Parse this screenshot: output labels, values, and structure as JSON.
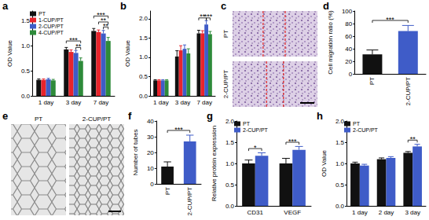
{
  "chart_data": [
    {
      "panel": "a",
      "type": "bar",
      "y_label": "OD Value",
      "categories": [
        "1 day",
        "3 day",
        "7 day"
      ],
      "series": [
        {
          "name": "PT",
          "color": "#111111",
          "values": [
            0.32,
            0.93,
            1.3
          ],
          "errors": [
            0.02,
            0.04,
            0.05
          ]
        },
        {
          "name": "1-CUP/PT",
          "color": "#e8242c",
          "values": [
            0.32,
            0.88,
            1.28
          ],
          "errors": [
            0.02,
            0.04,
            0.04
          ]
        },
        {
          "name": "2-CUP/PT",
          "color": "#3f5cc8",
          "values": [
            0.33,
            0.86,
            1.25
          ],
          "errors": [
            0.02,
            0.05,
            0.06
          ]
        },
        {
          "name": "4-CUP/PT",
          "color": "#2e8b3a",
          "values": [
            0.31,
            0.7,
            1.1
          ],
          "errors": [
            0.02,
            0.06,
            0.07
          ]
        }
      ],
      "ylim": [
        0,
        1.7
      ],
      "yticks": [
        {
          "value": 0,
          "label": "0.0"
        },
        {
          "value": 0.5,
          "label": "0.5"
        },
        {
          "value": 1,
          "label": "1.0"
        },
        {
          "value": 1.5,
          "label": "1.5"
        }
      ],
      "legend": "upper left",
      "annotations": [
        {
          "text": "***",
          "category": "3 day",
          "from": "PT",
          "to": "4-CUP/PT",
          "y": 1.1
        },
        {
          "text": "**",
          "category": "3 day",
          "from": "2-CUP/PT",
          "to": "4-CUP/PT",
          "y": 0.97
        },
        {
          "text": "***",
          "category": "7 day",
          "from": "PT",
          "to": "4-CUP/PT",
          "y": 1.6
        },
        {
          "text": "**",
          "category": "7 day",
          "from": "1-CUP/PT",
          "to": "4-CUP/PT",
          "y": 1.48
        },
        {
          "text": "**",
          "category": "7 day",
          "from": "2-CUP/PT",
          "to": "4-CUP/PT",
          "y": 1.38
        }
      ]
    },
    {
      "panel": "b",
      "type": "bar",
      "y_label": "OD Value",
      "categories": [
        "1 day",
        "3 day",
        "7 day"
      ],
      "series": [
        {
          "name": "PT",
          "color": "#111111",
          "values": [
            0.4,
            1.02,
            1.62
          ],
          "errors": [
            0.02,
            0.15,
            0.08
          ]
        },
        {
          "name": "1-CUP/PT",
          "color": "#e8242c",
          "values": [
            0.4,
            1.18,
            1.62
          ],
          "errors": [
            0.02,
            0.12,
            0.07
          ]
        },
        {
          "name": "2-CUP/PT",
          "color": "#3f5cc8",
          "values": [
            0.4,
            1.22,
            1.85
          ],
          "errors": [
            0.02,
            0.1,
            0.1
          ]
        },
        {
          "name": "4-CUP/PT",
          "color": "#2e8b3a",
          "values": [
            0.4,
            1.1,
            1.6
          ],
          "errors": [
            0.02,
            0.12,
            0.07
          ]
        }
      ],
      "ylim": [
        0,
        2.2
      ],
      "yticks": [
        {
          "value": 0,
          "label": "0.0"
        },
        {
          "value": 0.5,
          "label": "0.5"
        },
        {
          "value": 1,
          "label": "1.0"
        },
        {
          "value": 1.5,
          "label": "1.5"
        },
        {
          "value": 2,
          "label": "2.0"
        }
      ],
      "annotations": [
        {
          "text": "**",
          "category": "7 day",
          "from": "PT",
          "to": "2-CUP/PT",
          "y": 2.02
        },
        {
          "text": "***",
          "category": "7 day",
          "from": "2-CUP/PT",
          "to": "4-CUP/PT",
          "y": 2.02
        }
      ]
    },
    {
      "panel": "c",
      "type": "image",
      "labels": [
        "PT",
        "2-CUP/PT"
      ]
    },
    {
      "panel": "d",
      "type": "bar",
      "y_label": "Cell migration ratio (%)",
      "categories": [
        "PT",
        "2-CUP/PT"
      ],
      "values": [
        31,
        68
      ],
      "errors": [
        7,
        9
      ],
      "colors": [
        "#111111",
        "#3f5cc8"
      ],
      "ylim": [
        0,
        100
      ],
      "yticks": [
        0,
        20,
        40,
        60,
        80,
        100
      ],
      "annotations": [
        {
          "text": "***",
          "from": "PT",
          "to": "2-CUP/PT",
          "y": 85
        }
      ]
    },
    {
      "panel": "e",
      "type": "image",
      "labels": [
        "PT",
        "2-CUP/PT"
      ]
    },
    {
      "panel": "f",
      "type": "bar",
      "y_label": "Number of tubes",
      "categories": [
        "PT",
        "2-CUP/PT"
      ],
      "values": [
        11,
        27
      ],
      "errors": [
        3,
        4
      ],
      "colors": [
        "#111111",
        "#3f5cc8"
      ],
      "ylim": [
        0,
        40
      ],
      "yticks": [
        0,
        10,
        20,
        30,
        40
      ],
      "annotations": [
        {
          "text": "***",
          "from": "PT",
          "to": "2-CUP/PT",
          "y": 34
        }
      ]
    },
    {
      "panel": "g",
      "type": "bar",
      "y_label": "Relative protein expression",
      "categories": [
        "CD31",
        "VEGF"
      ],
      "series": [
        {
          "name": "PT",
          "color": "#111111",
          "values": [
            1.0,
            1.0
          ],
          "errors": [
            0.08,
            0.12
          ]
        },
        {
          "name": "2-CUP/PT",
          "color": "#3f5cc8",
          "values": [
            1.18,
            1.32
          ],
          "errors": [
            0.07,
            0.08
          ]
        }
      ],
      "ylim": [
        0,
        2
      ],
      "yticks": [
        {
          "value": 0,
          "label": "0.0"
        },
        {
          "value": 0.5,
          "label": "0.5"
        },
        {
          "value": 1,
          "label": "1.0"
        },
        {
          "value": 1.5,
          "label": "1.5"
        },
        {
          "value": 2,
          "label": "2.0"
        }
      ],
      "legend": "upper left",
      "annotations": [
        {
          "text": "*",
          "category": "CD31",
          "from": "PT",
          "to": "2-CUP/PT",
          "y": 1.35
        },
        {
          "text": "***",
          "category": "VEGF",
          "from": "PT",
          "to": "2-CUP/PT",
          "y": 1.5
        }
      ]
    },
    {
      "panel": "h",
      "type": "bar",
      "y_label": "OD Value",
      "categories": [
        "1 day",
        "2 day",
        "3 day"
      ],
      "series": [
        {
          "name": "PT",
          "color": "#111111",
          "values": [
            1.0,
            1.1,
            1.25
          ],
          "errors": [
            0.03,
            0.03,
            0.03
          ]
        },
        {
          "name": "2-CUP/PT",
          "color": "#3f5cc8",
          "values": [
            0.95,
            1.13,
            1.4
          ],
          "errors": [
            0.03,
            0.03,
            0.05
          ]
        }
      ],
      "ylim": [
        0,
        2
      ],
      "yticks": [
        {
          "value": 0,
          "label": "0.0"
        },
        {
          "value": 0.5,
          "label": "0.5"
        },
        {
          "value": 1,
          "label": "1.0"
        },
        {
          "value": 1.5,
          "label": "1.5"
        },
        {
          "value": 2,
          "label": "2.0"
        }
      ],
      "legend": "upper left",
      "annotations": [
        {
          "text": "**",
          "category": "3 day",
          "from": "PT",
          "to": "2-CUP/PT",
          "y": 1.55
        }
      ]
    }
  ]
}
